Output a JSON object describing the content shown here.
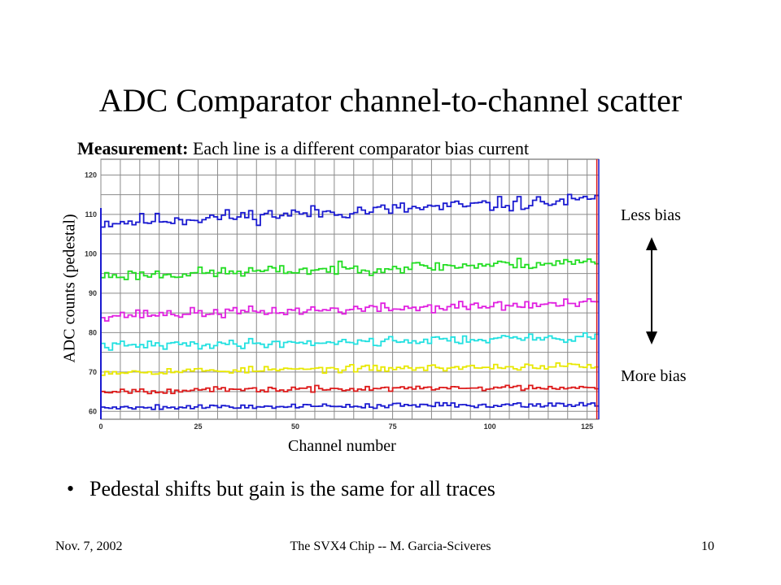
{
  "slide": {
    "title": "ADC Comparator channel-to-channel scatter",
    "measurement_label": "Measurement:",
    "measurement_text": " Each line is a different comparator bias current",
    "y_axis_label": "ADC counts (pedestal)",
    "x_axis_label": "Channel number",
    "annot_less": "Less bias",
    "annot_more": "More bias",
    "bullet": "Pedestal shifts but gain is the same for all traces",
    "footer_left": "Nov. 7, 2002",
    "footer_center": "The SVX4 Chip  --  M. Garcia-Sciveres",
    "footer_right": "10"
  },
  "chart_data": {
    "type": "line",
    "xlim": [
      0,
      128
    ],
    "ylim": [
      58,
      124
    ],
    "x_ticks": [
      0,
      25,
      50,
      75,
      100,
      125
    ],
    "y_ticks": [
      60,
      70,
      80,
      90,
      100,
      110,
      120
    ],
    "grid": true,
    "series": [
      {
        "color": "#1a1ad0",
        "mean": 110.8,
        "slope": 0.045,
        "noise": 1.3,
        "seed": 11
      },
      {
        "color": "#22dd22",
        "mean": 96.2,
        "slope": 0.028,
        "noise": 1.0,
        "seed": 23
      },
      {
        "color": "#e020e0",
        "mean": 85.9,
        "slope": 0.024,
        "noise": 0.9,
        "seed": 37
      },
      {
        "color": "#22e0e0",
        "mean": 77.7,
        "slope": 0.018,
        "noise": 0.8,
        "seed": 41
      },
      {
        "color": "#e8e800",
        "mean": 70.8,
        "slope": 0.012,
        "noise": 0.6,
        "seed": 53
      },
      {
        "color": "#dd1a1a",
        "mean": 65.7,
        "slope": 0.008,
        "noise": 0.5,
        "seed": 67
      },
      {
        "color": "#1a1ad0",
        "mean": 61.4,
        "slope": 0.006,
        "noise": 0.45,
        "seed": 79
      }
    ],
    "markers": [
      {
        "x": 127.5,
        "color": "#dd1a1a"
      },
      {
        "x": 128.0,
        "color": "#1a1ad0"
      }
    ]
  }
}
